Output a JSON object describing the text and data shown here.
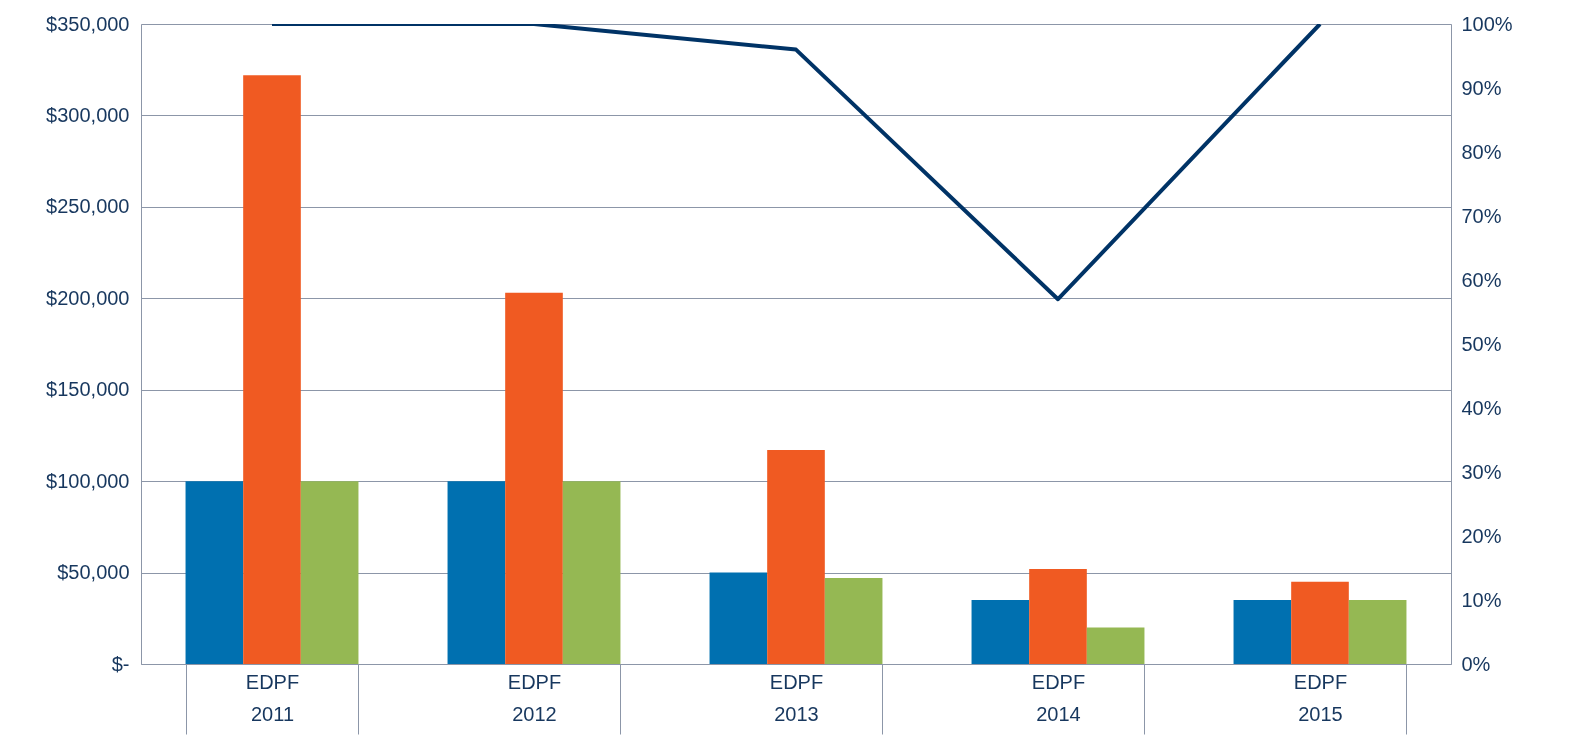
{
  "chart_data": {
    "type": "bar",
    "categories": [
      "EDPF\n2011",
      "EDPF\n2012",
      "EDPF\n2013",
      "EDPF\n2014",
      "EDPF\n2015"
    ],
    "series": [
      {
        "color": "#0070b0",
        "values": [
          100000,
          100000,
          50000,
          35000,
          35000
        ]
      },
      {
        "color": "#f05a22",
        "values": [
          322000,
          203000,
          117000,
          52000,
          45000
        ]
      },
      {
        "color": "#95b853",
        "values": [
          100000,
          100000,
          47000,
          20000,
          35000
        ]
      },
      {
        "type": "line",
        "axis": "y2",
        "color": "#003366",
        "values": [
          100,
          100,
          96,
          57,
          100
        ]
      }
    ],
    "ylim": [
      0,
      350000
    ],
    "yticks": [
      {
        "value": 0,
        "label": "$-"
      },
      {
        "value": 50000,
        "label": "$50,000"
      },
      {
        "value": 100000,
        "label": "$100,000"
      },
      {
        "value": 150000,
        "label": "$150,000"
      },
      {
        "value": 200000,
        "label": "$200,000"
      },
      {
        "value": 250000,
        "label": "$250,000"
      },
      {
        "value": 300000,
        "label": "$300,000"
      },
      {
        "value": 350000,
        "label": "$350,000"
      }
    ],
    "y2lim": [
      0,
      100
    ],
    "y2ticks": [
      {
        "value": 0,
        "label": "0%"
      },
      {
        "value": 10,
        "label": "10%"
      },
      {
        "value": 20,
        "label": "20%"
      },
      {
        "value": 30,
        "label": "30%"
      },
      {
        "value": 40,
        "label": "40%"
      },
      {
        "value": 50,
        "label": "50%"
      },
      {
        "value": 60,
        "label": "60%"
      },
      {
        "value": 70,
        "label": "70%"
      },
      {
        "value": 80,
        "label": "80%"
      },
      {
        "value": 90,
        "label": "90%"
      },
      {
        "value": 100,
        "label": "100%"
      }
    ],
    "grid": "y",
    "legend": false,
    "marker": "none",
    "line_style": "solid"
  }
}
